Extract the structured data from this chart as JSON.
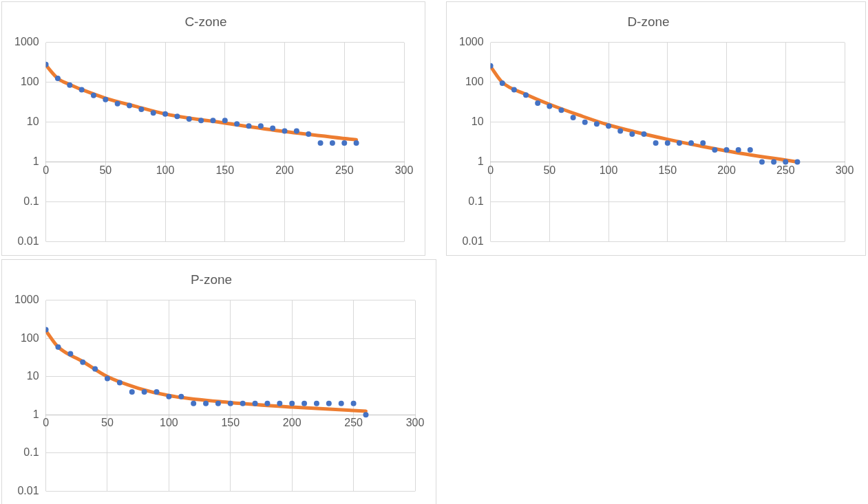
{
  "chart_data": [
    {
      "type": "scatter",
      "title": "C-zone",
      "x": [
        0,
        10,
        20,
        30,
        40,
        50,
        60,
        70,
        80,
        90,
        100,
        110,
        120,
        130,
        140,
        150,
        160,
        170,
        180,
        190,
        200,
        210,
        220,
        230,
        240,
        250,
        260
      ],
      "series": [
        {
          "type": "scatter",
          "color": "#4472c4",
          "marker": "circle",
          "values": [
            280,
            125,
            85,
            65,
            47,
            37,
            29,
            26,
            21,
            17,
            16,
            14,
            12,
            11,
            11,
            11,
            9,
            8,
            8,
            7,
            6,
            6,
            5,
            3,
            3,
            3,
            3
          ]
        },
        {
          "type": "line",
          "color": "#ed7d31",
          "marker": "none",
          "x": [
            0,
            10,
            20,
            30,
            50,
            75,
            100,
            150,
            200,
            260
          ],
          "values": [
            270,
            125,
            88,
            66,
            40,
            25,
            16,
            9.5,
            5.8,
            3.6
          ]
        }
      ],
      "log": "y",
      "xlim": [
        0,
        300
      ],
      "xticks": [
        0,
        50,
        100,
        150,
        200,
        250,
        300
      ],
      "ylim": [
        0.01,
        1000
      ],
      "yticks": [
        0.01,
        0.1,
        1,
        10,
        100,
        1000
      ],
      "grid": true,
      "legend": false
    },
    {
      "type": "scatter",
      "title": "D-zone",
      "x": [
        0,
        10,
        20,
        30,
        40,
        50,
        60,
        70,
        80,
        90,
        100,
        110,
        120,
        130,
        140,
        150,
        160,
        170,
        180,
        190,
        200,
        210,
        220,
        230,
        240,
        250,
        260
      ],
      "series": [
        {
          "type": "scatter",
          "color": "#4472c4",
          "marker": "circle",
          "values": [
            260,
            95,
            65,
            48,
            30,
            25,
            20,
            13,
            10,
            9,
            8,
            6,
            5,
            5,
            3,
            3,
            3,
            3,
            3,
            2,
            2,
            2,
            2,
            1,
            1,
            1,
            1
          ]
        },
        {
          "type": "line",
          "color": "#ed7d31",
          "marker": "none",
          "x": [
            0,
            10,
            30,
            50,
            75,
            100,
            150,
            200,
            260
          ],
          "values": [
            250,
            100,
            50,
            28,
            15,
            8.5,
            3.7,
            1.9,
            1
          ]
        }
      ],
      "log": "y",
      "xlim": [
        0,
        300
      ],
      "xticks": [
        0,
        50,
        100,
        150,
        200,
        250,
        300
      ],
      "ylim": [
        0.01,
        1000
      ],
      "yticks": [
        0.01,
        0.1,
        1,
        10,
        100,
        1000
      ],
      "grid": true,
      "legend": false
    },
    {
      "type": "scatter",
      "title": "P-zone",
      "x": [
        0,
        10,
        20,
        30,
        40,
        50,
        60,
        70,
        80,
        90,
        100,
        110,
        120,
        130,
        140,
        150,
        160,
        170,
        180,
        190,
        200,
        210,
        220,
        230,
        240,
        250,
        260
      ],
      "series": [
        {
          "type": "scatter",
          "color": "#4472c4",
          "marker": "circle",
          "values": [
            170,
            60,
            40,
            24,
            16,
            9,
            7,
            4,
            4,
            4,
            3,
            3,
            2,
            2,
            2,
            2,
            2,
            2,
            2,
            2,
            2,
            2,
            2,
            2,
            2,
            2,
            1
          ]
        },
        {
          "type": "line",
          "color": "#ed7d31",
          "marker": "none",
          "x": [
            0,
            10,
            30,
            50,
            75,
            100,
            150,
            200,
            260
          ],
          "values": [
            160,
            60,
            25,
            10,
            5,
            3.2,
            2.1,
            1.6,
            1.25
          ]
        }
      ],
      "log": "y",
      "xlim": [
        0,
        300
      ],
      "xticks": [
        0,
        50,
        100,
        150,
        200,
        250,
        300
      ],
      "ylim": [
        0.01,
        1000
      ],
      "yticks": [
        0.01,
        0.1,
        1,
        10,
        100,
        1000
      ],
      "grid": true,
      "legend": false
    }
  ]
}
